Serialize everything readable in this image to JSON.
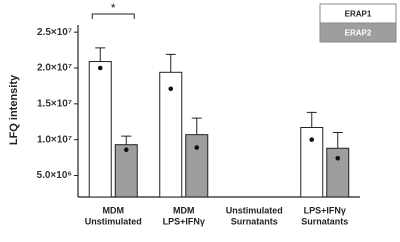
{
  "chart_data": {
    "type": "bar",
    "y_label": "LFQ intensity",
    "annotation": "*",
    "legend": "top-right",
    "categories": [
      [
        "MDM",
        "Unstimulated"
      ],
      [
        "MDM",
        "LPS+IFNγ"
      ],
      [
        "Unstimulated",
        "Surnatants"
      ],
      [
        "LPS+IFNγ",
        "Surnatants"
      ]
    ],
    "series": [
      {
        "name": "ERAP1",
        "color": "#ffffff",
        "text_color": "#222222",
        "values": [
          20900000,
          19400000,
          null,
          11700000
        ],
        "errors": [
          1900000,
          2500000,
          null,
          2100000
        ],
        "points": [
          20000000,
          17100000,
          null,
          10000000
        ]
      },
      {
        "name": "ERAP2",
        "color": "#9e9e9e",
        "text_color": "#ffffff",
        "values": [
          9300000,
          10700000,
          null,
          8800000
        ],
        "errors": [
          1200000,
          2300000,
          null,
          2200000
        ],
        "points": [
          8600000,
          8900000,
          null,
          7400000
        ]
      }
    ],
    "ylim": [
      2000000,
      26000000
    ],
    "yticks": [
      {
        "value": 5000000,
        "label": "5.0×10⁶"
      },
      {
        "value": 10000000,
        "label": "1.0×10⁷"
      },
      {
        "value": 15000000,
        "label": "1.5×10⁷"
      },
      {
        "value": 20000000,
        "label": "2.0×10⁷"
      },
      {
        "value": 25000000,
        "label": "2.5×10⁷"
      }
    ]
  }
}
